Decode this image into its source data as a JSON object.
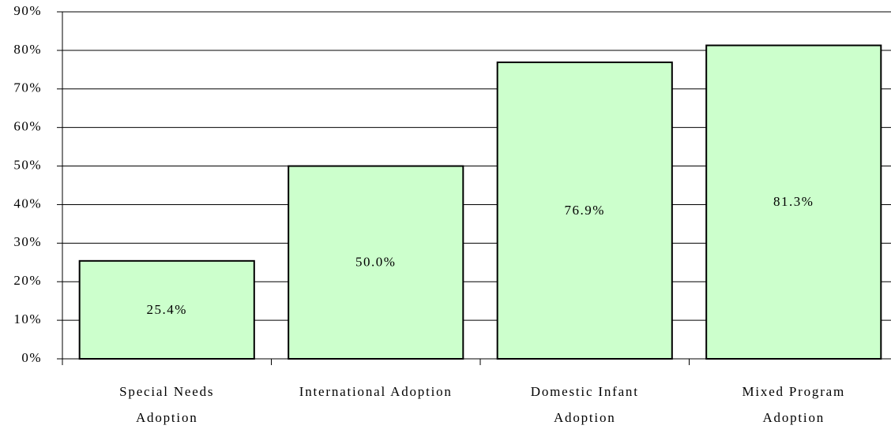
{
  "chart_data": {
    "type": "bar",
    "categories": [
      "Special Needs\nAdoption",
      "International Adoption",
      "Domestic Infant\nAdoption",
      "Mixed Program\nAdoption"
    ],
    "values": [
      25.4,
      50.0,
      76.9,
      81.3
    ],
    "value_labels": [
      "25.4%",
      "50.0%",
      "76.9%",
      "81.3%"
    ],
    "color": "#ccffcc",
    "ylim": [
      0,
      90
    ],
    "yticks": [
      {
        "value": 0,
        "label": "0%"
      },
      {
        "value": 10,
        "label": "10%"
      },
      {
        "value": 20,
        "label": "20%"
      },
      {
        "value": 30,
        "label": "30%"
      },
      {
        "value": 40,
        "label": "40%"
      },
      {
        "value": 50,
        "label": "50%"
      },
      {
        "value": 60,
        "label": "60%"
      },
      {
        "value": 70,
        "label": "70%"
      },
      {
        "value": 80,
        "label": "80%"
      },
      {
        "value": 90,
        "label": "90%"
      }
    ],
    "grid": true
  }
}
